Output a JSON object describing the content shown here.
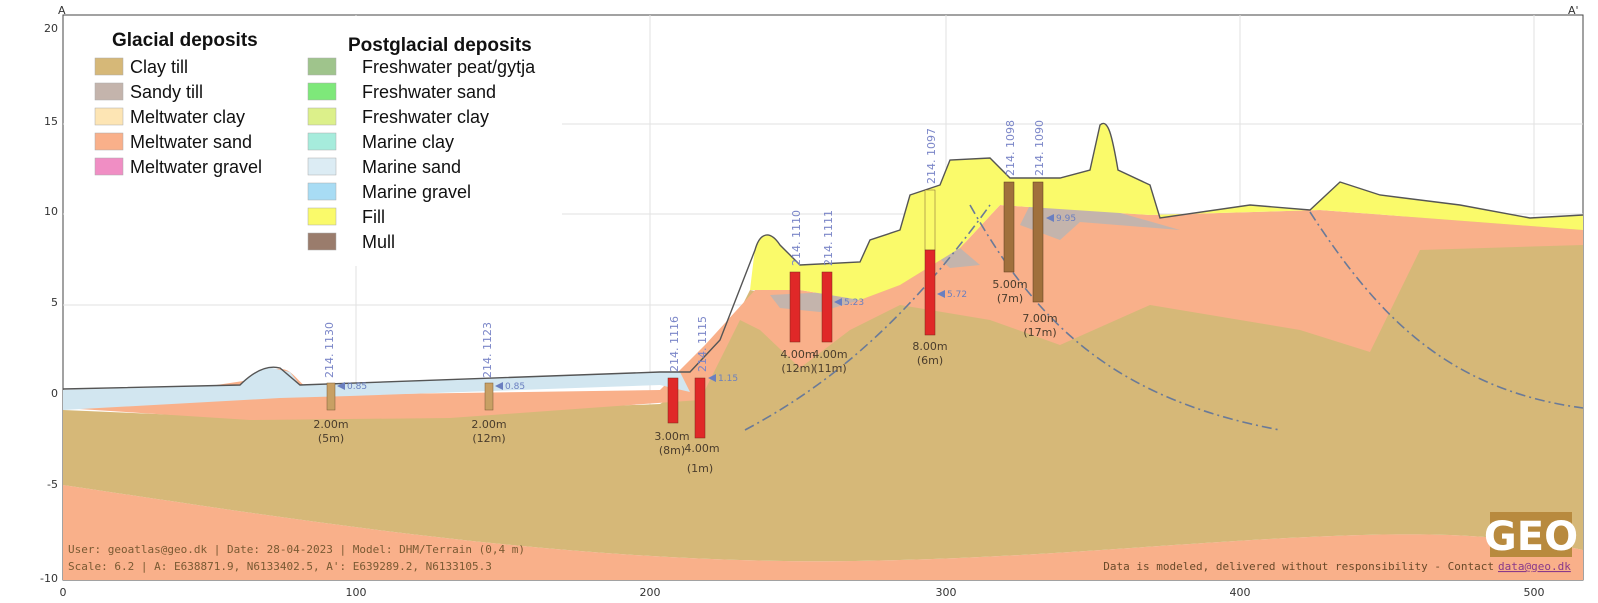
{
  "section": {
    "start_label": "A",
    "end_label": "A'"
  },
  "axes": {
    "x_ticks": [
      "0",
      "100",
      "200",
      "300",
      "400",
      "500"
    ],
    "y_ticks": [
      "20",
      "15",
      "10",
      "5",
      "0",
      "-5",
      "-10"
    ]
  },
  "legend": {
    "glacial_title": "Glacial deposits",
    "glacial": [
      {
        "label": "Clay till",
        "color": "#d6b878"
      },
      {
        "label": "Sandy till",
        "color": "#c4b4ac"
      },
      {
        "label": "Meltwater clay",
        "color": "#fde5b4"
      },
      {
        "label": "Meltwater sand",
        "color": "#f9b08a"
      },
      {
        "label": "Meltwater gravel",
        "color": "#f08ec4"
      }
    ],
    "postglacial_title": "Postglacial deposits",
    "postglacial": [
      {
        "label": "Freshwater peat/gytja",
        "color": "#9fc48c"
      },
      {
        "label": "Freshwater sand",
        "color": "#7ee87a"
      },
      {
        "label": "Freshwater clay",
        "color": "#dcf08a"
      },
      {
        "label": "Marine clay",
        "color": "#a6ecdc"
      },
      {
        "label": "Marine sand",
        "color": "#dcecf4"
      },
      {
        "label": "Marine gravel",
        "color": "#a8dcf4"
      },
      {
        "label": "Fill",
        "color": "#fafa6a"
      },
      {
        "label": "Mull",
        "color": "#9a7c6c"
      }
    ]
  },
  "boreholes": [
    {
      "id": "214. 1130",
      "water": "0.85",
      "depth": "2.00m",
      "total": "(5m)"
    },
    {
      "id": "214. 1123",
      "water": "0.85",
      "depth": "2.00m",
      "total": "(12m)"
    },
    {
      "id": "214. 1116",
      "water": "",
      "depth": "3.00m",
      "total": "(8m)"
    },
    {
      "id": "214. 1115",
      "water": "1.15",
      "depth": "4.00m",
      "total": "(1m)"
    },
    {
      "id": "214. 1110",
      "water": "",
      "depth": "4.00m",
      "total": "(12m)"
    },
    {
      "id": "214. 1111",
      "water": "5.23",
      "depth": "4.00m",
      "total": "(11m)"
    },
    {
      "id": "214. 1097",
      "water": "5.72",
      "depth": "8.00m",
      "total": "(6m)"
    },
    {
      "id": "214. 1098",
      "water": "",
      "depth": "5.00m",
      "total": "(7m)"
    },
    {
      "id": "214. 1090",
      "water": "9.95",
      "depth": "7.00m",
      "total": "(17m)"
    }
  ],
  "footer": {
    "line1": "User: geoatlas@geo.dk | Date: 28-04-2023 | Model: DHM/Terrain (0,4 m)",
    "line2": "Scale: 6.2 | A: E638871.9, N6133402.5, A': E639289.2, N6133105.3",
    "disclaimer": "Data is modeled, delivered without responsibility - Contact",
    "contact": "data@geo.dk",
    "logo": "GEO"
  }
}
